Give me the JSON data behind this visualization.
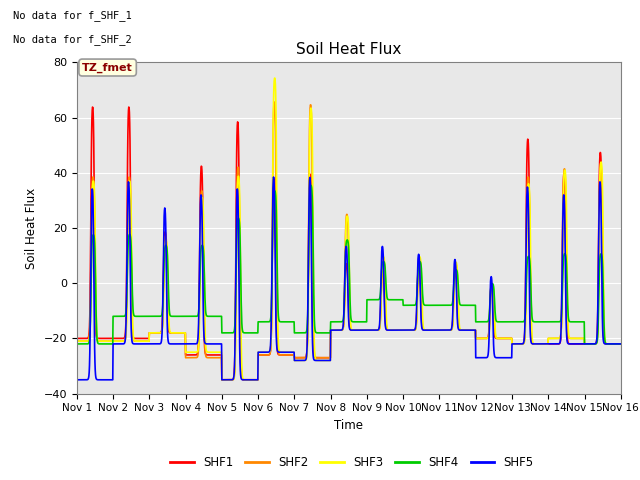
{
  "title": "Soil Heat Flux",
  "ylabel": "Soil Heat Flux",
  "xlabel": "Time",
  "ylim": [
    -40,
    80
  ],
  "xlim": [
    0,
    15
  ],
  "x_ticks": [
    0,
    1,
    2,
    3,
    4,
    5,
    6,
    7,
    8,
    9,
    10,
    11,
    12,
    13,
    14,
    15
  ],
  "x_tick_labels": [
    "Nov 1",
    "Nov 2",
    "Nov 3",
    "Nov 4",
    "Nov 5",
    "Nov 6",
    "Nov 7",
    "Nov 8",
    "Nov 9",
    "Nov 10",
    "Nov 11",
    "Nov 12",
    "Nov 13",
    "Nov 14",
    "Nov 15",
    "Nov 16"
  ],
  "no_data_text1": "No data for f_SHF_1",
  "no_data_text2": "No data for f_SHF_2",
  "tz_label": "TZ_fmet",
  "background_color": "#e8e8e8",
  "series_colors": [
    "#ff0000",
    "#ff8800",
    "#ffff00",
    "#00cc00",
    "#0000ff"
  ],
  "series_names": [
    "SHF1",
    "SHF2",
    "SHF3",
    "SHF4",
    "SHF5"
  ],
  "linewidth": 1.2,
  "figsize": [
    6.4,
    4.8
  ],
  "dpi": 100
}
